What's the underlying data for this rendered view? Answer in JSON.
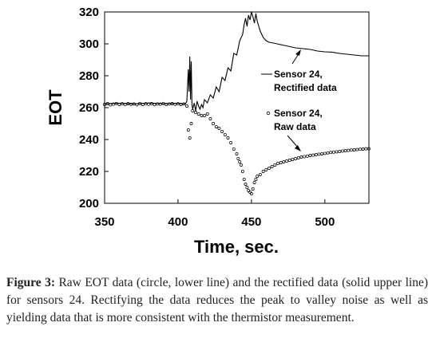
{
  "chart_data": {
    "type": "line",
    "xlabel": "Time, sec.",
    "ylabel": "EOT",
    "xlim": [
      350,
      530
    ],
    "ylim": [
      200,
      320
    ],
    "x_ticks": [
      350,
      400,
      450,
      500
    ],
    "y_ticks": [
      200,
      220,
      240,
      260,
      280,
      300,
      320
    ],
    "grid": false,
    "series": [
      {
        "name": "Sensor 24, Rectified data",
        "style": "solid-line",
        "color": "#000000",
        "points": [
          [
            350,
            262.5
          ],
          [
            360,
            262.8
          ],
          [
            370,
            262.4
          ],
          [
            380,
            262.9
          ],
          [
            390,
            262.5
          ],
          [
            400,
            262.7
          ],
          [
            405,
            262.3
          ],
          [
            406,
            264
          ],
          [
            407,
            284
          ],
          [
            407.5,
            270
          ],
          [
            408,
            292
          ],
          [
            408.5,
            265
          ],
          [
            409,
            289
          ],
          [
            409.5,
            262
          ],
          [
            410,
            259
          ],
          [
            411,
            263
          ],
          [
            412,
            258
          ],
          [
            413,
            264
          ],
          [
            414,
            261
          ],
          [
            415,
            259
          ],
          [
            416,
            262
          ],
          [
            417,
            260
          ],
          [
            418,
            265
          ],
          [
            420,
            263
          ],
          [
            422,
            268
          ],
          [
            424,
            266
          ],
          [
            426,
            273
          ],
          [
            428,
            270
          ],
          [
            430,
            279
          ],
          [
            432,
            277
          ],
          [
            434,
            285
          ],
          [
            436,
            283
          ],
          [
            438,
            294
          ],
          [
            440,
            293
          ],
          [
            442,
            302
          ],
          [
            444,
            306
          ],
          [
            445,
            312
          ],
          [
            446,
            316
          ],
          [
            447,
            311
          ],
          [
            448,
            318
          ],
          [
            449,
            315
          ],
          [
            450,
            320
          ],
          [
            451,
            317
          ],
          [
            452,
            313
          ],
          [
            453,
            319
          ],
          [
            454,
            314
          ],
          [
            455,
            311
          ],
          [
            456,
            308
          ],
          [
            458,
            304
          ],
          [
            460,
            302
          ],
          [
            462,
            301
          ],
          [
            465,
            300.5
          ],
          [
            470,
            299.5
          ],
          [
            475,
            298.5
          ],
          [
            480,
            297.5
          ],
          [
            485,
            297
          ],
          [
            490,
            296.5
          ],
          [
            495,
            295.5
          ],
          [
            500,
            295
          ],
          [
            505,
            294.8
          ],
          [
            510,
            294
          ],
          [
            515,
            293.5
          ],
          [
            520,
            293
          ],
          [
            525,
            292.5
          ],
          [
            530,
            292.5
          ]
        ]
      },
      {
        "name": "Sensor 24, Raw data",
        "style": "open-circle",
        "color": "#000000",
        "points": [
          [
            350,
            262
          ],
          [
            352,
            262.5
          ],
          [
            354,
            261.8
          ],
          [
            356,
            262.2
          ],
          [
            358,
            262.6
          ],
          [
            360,
            262
          ],
          [
            362,
            262.4
          ],
          [
            364,
            261.9
          ],
          [
            366,
            262.5
          ],
          [
            368,
            262.1
          ],
          [
            370,
            262.3
          ],
          [
            372,
            261.8
          ],
          [
            374,
            262.6
          ],
          [
            376,
            262
          ],
          [
            378,
            262.4
          ],
          [
            380,
            262.1
          ],
          [
            382,
            262.5
          ],
          [
            384,
            261.9
          ],
          [
            386,
            262.3
          ],
          [
            388,
            262.2
          ],
          [
            390,
            262.6
          ],
          [
            392,
            262
          ],
          [
            394,
            262.3
          ],
          [
            396,
            262.5
          ],
          [
            398,
            262.1
          ],
          [
            400,
            262.4
          ],
          [
            402,
            262
          ],
          [
            404,
            262.3
          ],
          [
            406,
            261
          ],
          [
            407,
            246
          ],
          [
            408,
            241
          ],
          [
            409,
            250
          ],
          [
            410,
            258
          ],
          [
            412,
            257
          ],
          [
            414,
            256
          ],
          [
            416,
            255
          ],
          [
            418,
            255
          ],
          [
            420,
            256
          ],
          [
            422,
            253
          ],
          [
            424,
            250
          ],
          [
            426,
            248
          ],
          [
            428,
            247
          ],
          [
            430,
            245
          ],
          [
            432,
            243
          ],
          [
            434,
            241
          ],
          [
            436,
            238
          ],
          [
            438,
            234
          ],
          [
            440,
            231
          ],
          [
            441,
            228
          ],
          [
            442,
            226
          ],
          [
            443,
            224
          ],
          [
            444,
            220
          ],
          [
            445,
            215
          ],
          [
            446,
            212
          ],
          [
            447,
            210
          ],
          [
            448,
            208
          ],
          [
            449,
            207
          ],
          [
            450,
            206
          ],
          [
            451,
            209
          ],
          [
            452,
            213
          ],
          [
            453,
            215
          ],
          [
            454,
            217
          ],
          [
            456,
            218
          ],
          [
            458,
            220
          ],
          [
            460,
            221
          ],
          [
            462,
            222
          ],
          [
            464,
            223
          ],
          [
            466,
            224
          ],
          [
            468,
            225
          ],
          [
            470,
            225.5
          ],
          [
            472,
            226
          ],
          [
            474,
            226.5
          ],
          [
            476,
            227
          ],
          [
            478,
            227.5
          ],
          [
            480,
            228
          ],
          [
            482,
            228.5
          ],
          [
            484,
            229
          ],
          [
            486,
            229.3
          ],
          [
            488,
            229.6
          ],
          [
            490,
            230
          ],
          [
            492,
            230.2
          ],
          [
            494,
            230.5
          ],
          [
            496,
            230.8
          ],
          [
            498,
            231
          ],
          [
            500,
            231.3
          ],
          [
            502,
            231.6
          ],
          [
            504,
            231.9
          ],
          [
            506,
            232.1
          ],
          [
            508,
            232.3
          ],
          [
            510,
            232.5
          ],
          [
            512,
            232.8
          ],
          [
            514,
            233
          ],
          [
            516,
            233.2
          ],
          [
            518,
            233.4
          ],
          [
            520,
            233.5
          ],
          [
            522,
            233.7
          ],
          [
            524,
            233.9
          ],
          [
            526,
            234
          ],
          [
            528,
            234.2
          ],
          [
            530,
            234.2
          ]
        ]
      }
    ],
    "annotations": [
      {
        "series": 0,
        "lines": [
          "Sensor 24,",
          "Rectified data"
        ]
      },
      {
        "series": 1,
        "lines": [
          "Sensor 24,",
          "Raw data"
        ]
      }
    ]
  },
  "caption": {
    "label": "Figure 3:",
    "text": "Raw EOT data (circle, lower line) and the rectified data (solid upper line) for sensors 24. Rectifying the data reduces the peak to valley noise as well as yielding data that is more consistent with the thermistor measurement."
  }
}
